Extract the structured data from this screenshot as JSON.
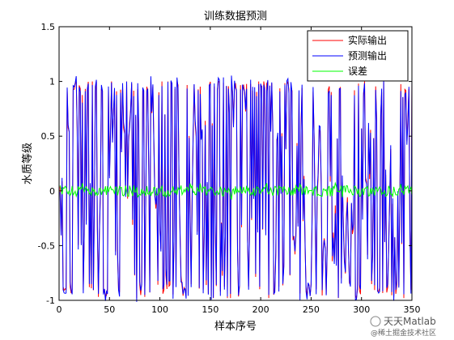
{
  "chart_data": {
    "type": "line",
    "title": "训练数据预测",
    "xlabel": "样本序号",
    "ylabel": "水质等级",
    "xlim": [
      0,
      350
    ],
    "ylim": [
      -1,
      1.5
    ],
    "xticks": [
      0,
      50,
      100,
      150,
      200,
      250,
      300,
      350
    ],
    "yticks": [
      -1,
      -0.5,
      0,
      0.5,
      1,
      1.5
    ],
    "xtick_labels": [
      "0",
      "50",
      "100",
      "150",
      "200",
      "250",
      "300",
      "350"
    ],
    "ytick_labels": [
      "-1",
      "-0.5",
      "0",
      "0.5",
      "1",
      "1.5"
    ],
    "grid": false,
    "legend_position": "top-right",
    "n_samples": 350,
    "series": [
      {
        "name": "实际输出",
        "color": "#ff0000",
        "amplitude": 1.0,
        "kind": "oscillating"
      },
      {
        "name": "预测输出",
        "color": "#0000ff",
        "amplitude": 1.0,
        "kind": "oscillating"
      },
      {
        "name": "误差",
        "color": "#00ff00",
        "amplitude": 0.05,
        "kind": "noise"
      }
    ]
  },
  "watermark": {
    "main": "天天Matlab",
    "sub": "@稀土掘金技术社区"
  }
}
